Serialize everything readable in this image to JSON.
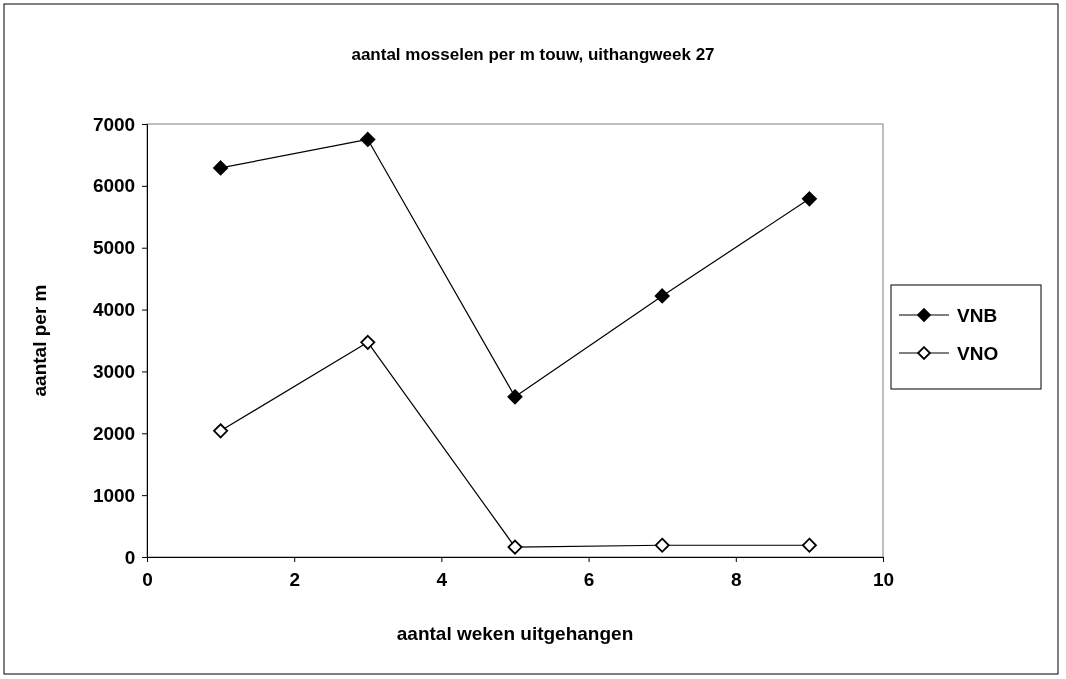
{
  "chart_data": {
    "type": "line",
    "title": "aantal mosselen per m touw, uithangweek 27",
    "xlabel": "aantal weken uitgehangen",
    "ylabel": "aantal per m",
    "x": [
      1,
      3,
      5,
      7,
      9
    ],
    "series": [
      {
        "name": "VNB",
        "color": "#000000",
        "values": [
          6290,
          6750,
          2590,
          4220,
          5790
        ]
      },
      {
        "name": "VNO",
        "color": "#000000",
        "values": [
          2040,
          3470,
          160,
          190,
          190
        ]
      }
    ],
    "xlim": [
      0,
      10
    ],
    "xticks": [
      0,
      2,
      4,
      6,
      8,
      10
    ],
    "ylim": [
      0,
      7000
    ],
    "yticks": [
      0,
      1000,
      2000,
      3000,
      4000,
      5000,
      6000,
      7000
    ],
    "grid": false,
    "legend": "right",
    "marker": "diamond",
    "line_style": "solid"
  }
}
